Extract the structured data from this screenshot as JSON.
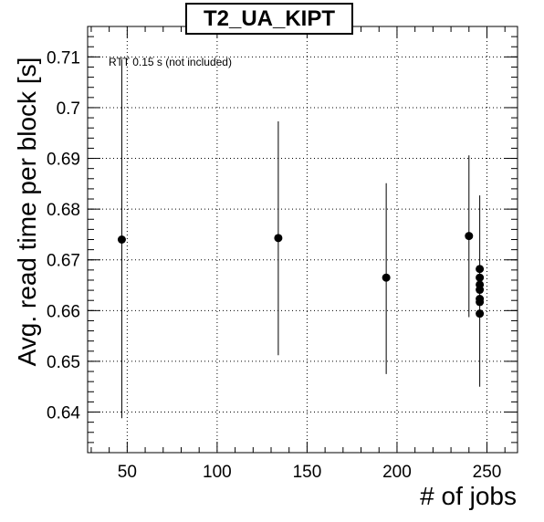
{
  "chart_data": {
    "type": "scatter",
    "title": "T2_UA_KIPT",
    "xlabel": "# of jobs",
    "ylabel": "Avg. read time per block [s]",
    "annotation": "RTT 0.15 s (not included)",
    "xlim": [
      28,
      267
    ],
    "ylim": [
      0.632,
      0.716
    ],
    "xticks": [
      50,
      100,
      150,
      200,
      250
    ],
    "yticks": [
      0.64,
      0.65,
      0.66,
      0.67,
      0.68,
      0.69,
      0.7,
      0.71
    ],
    "ytick_labels": [
      "0.64",
      "0.65",
      "0.66",
      "0.67",
      "0.68",
      "0.69",
      "0.7",
      "0.71"
    ],
    "grid": true,
    "points": [
      {
        "x": 47,
        "y": 0.674,
        "err_low": 0.6388,
        "err_high": 0.7095
      },
      {
        "x": 134,
        "y": 0.6743,
        "err_low": 0.6512,
        "err_high": 0.6973
      },
      {
        "x": 194,
        "y": 0.6665,
        "err_low": 0.6475,
        "err_high": 0.6851
      },
      {
        "x": 240,
        "y": 0.6747,
        "err_low": 0.6587,
        "err_high": 0.6906
      },
      {
        "x": 246,
        "y": 0.6682,
        "err_low": 0.645,
        "err_high": 0.6827
      },
      {
        "x": 246,
        "y": 0.6665
      },
      {
        "x": 246,
        "y": 0.6651
      },
      {
        "x": 246,
        "y": 0.6641
      },
      {
        "x": 246,
        "y": 0.6623
      },
      {
        "x": 246,
        "y": 0.6617
      },
      {
        "x": 246,
        "y": 0.6594
      }
    ]
  }
}
